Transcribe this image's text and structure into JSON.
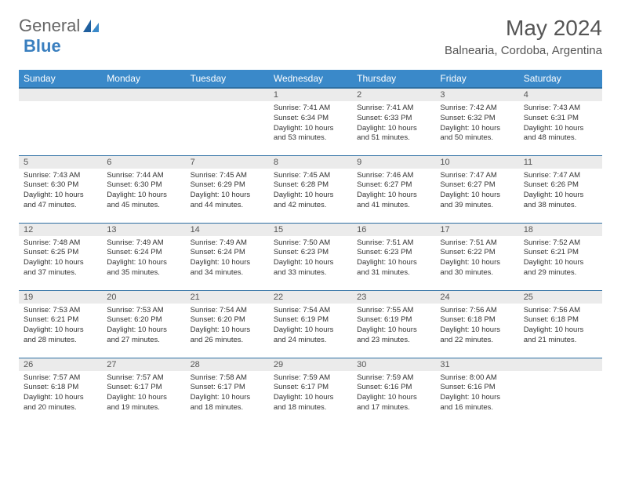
{
  "brand": {
    "part1": "General",
    "part2": "Blue"
  },
  "title": "May 2024",
  "location": "Balnearia, Cordoba, Argentina",
  "colors": {
    "header_bg": "#3a89c9",
    "header_border": "#2d6fa3",
    "daynum_bg": "#ebebeb",
    "text": "#333333",
    "brand_gray": "#666666",
    "brand_blue": "#3a7fbf"
  },
  "weekdays": [
    "Sunday",
    "Monday",
    "Tuesday",
    "Wednesday",
    "Thursday",
    "Friday",
    "Saturday"
  ],
  "weeks": [
    [
      null,
      null,
      null,
      {
        "n": "1",
        "sr": "7:41 AM",
        "ss": "6:34 PM",
        "dh": "10",
        "dm": "53"
      },
      {
        "n": "2",
        "sr": "7:41 AM",
        "ss": "6:33 PM",
        "dh": "10",
        "dm": "51"
      },
      {
        "n": "3",
        "sr": "7:42 AM",
        "ss": "6:32 PM",
        "dh": "10",
        "dm": "50"
      },
      {
        "n": "4",
        "sr": "7:43 AM",
        "ss": "6:31 PM",
        "dh": "10",
        "dm": "48"
      }
    ],
    [
      {
        "n": "5",
        "sr": "7:43 AM",
        "ss": "6:30 PM",
        "dh": "10",
        "dm": "47"
      },
      {
        "n": "6",
        "sr": "7:44 AM",
        "ss": "6:30 PM",
        "dh": "10",
        "dm": "45"
      },
      {
        "n": "7",
        "sr": "7:45 AM",
        "ss": "6:29 PM",
        "dh": "10",
        "dm": "44"
      },
      {
        "n": "8",
        "sr": "7:45 AM",
        "ss": "6:28 PM",
        "dh": "10",
        "dm": "42"
      },
      {
        "n": "9",
        "sr": "7:46 AM",
        "ss": "6:27 PM",
        "dh": "10",
        "dm": "41"
      },
      {
        "n": "10",
        "sr": "7:47 AM",
        "ss": "6:27 PM",
        "dh": "10",
        "dm": "39"
      },
      {
        "n": "11",
        "sr": "7:47 AM",
        "ss": "6:26 PM",
        "dh": "10",
        "dm": "38"
      }
    ],
    [
      {
        "n": "12",
        "sr": "7:48 AM",
        "ss": "6:25 PM",
        "dh": "10",
        "dm": "37"
      },
      {
        "n": "13",
        "sr": "7:49 AM",
        "ss": "6:24 PM",
        "dh": "10",
        "dm": "35"
      },
      {
        "n": "14",
        "sr": "7:49 AM",
        "ss": "6:24 PM",
        "dh": "10",
        "dm": "34"
      },
      {
        "n": "15",
        "sr": "7:50 AM",
        "ss": "6:23 PM",
        "dh": "10",
        "dm": "33"
      },
      {
        "n": "16",
        "sr": "7:51 AM",
        "ss": "6:23 PM",
        "dh": "10",
        "dm": "31"
      },
      {
        "n": "17",
        "sr": "7:51 AM",
        "ss": "6:22 PM",
        "dh": "10",
        "dm": "30"
      },
      {
        "n": "18",
        "sr": "7:52 AM",
        "ss": "6:21 PM",
        "dh": "10",
        "dm": "29"
      }
    ],
    [
      {
        "n": "19",
        "sr": "7:53 AM",
        "ss": "6:21 PM",
        "dh": "10",
        "dm": "28"
      },
      {
        "n": "20",
        "sr": "7:53 AM",
        "ss": "6:20 PM",
        "dh": "10",
        "dm": "27"
      },
      {
        "n": "21",
        "sr": "7:54 AM",
        "ss": "6:20 PM",
        "dh": "10",
        "dm": "26"
      },
      {
        "n": "22",
        "sr": "7:54 AM",
        "ss": "6:19 PM",
        "dh": "10",
        "dm": "24"
      },
      {
        "n": "23",
        "sr": "7:55 AM",
        "ss": "6:19 PM",
        "dh": "10",
        "dm": "23"
      },
      {
        "n": "24",
        "sr": "7:56 AM",
        "ss": "6:18 PM",
        "dh": "10",
        "dm": "22"
      },
      {
        "n": "25",
        "sr": "7:56 AM",
        "ss": "6:18 PM",
        "dh": "10",
        "dm": "21"
      }
    ],
    [
      {
        "n": "26",
        "sr": "7:57 AM",
        "ss": "6:18 PM",
        "dh": "10",
        "dm": "20"
      },
      {
        "n": "27",
        "sr": "7:57 AM",
        "ss": "6:17 PM",
        "dh": "10",
        "dm": "19"
      },
      {
        "n": "28",
        "sr": "7:58 AM",
        "ss": "6:17 PM",
        "dh": "10",
        "dm": "18"
      },
      {
        "n": "29",
        "sr": "7:59 AM",
        "ss": "6:17 PM",
        "dh": "10",
        "dm": "18"
      },
      {
        "n": "30",
        "sr": "7:59 AM",
        "ss": "6:16 PM",
        "dh": "10",
        "dm": "17"
      },
      {
        "n": "31",
        "sr": "8:00 AM",
        "ss": "6:16 PM",
        "dh": "10",
        "dm": "16"
      },
      null
    ]
  ]
}
